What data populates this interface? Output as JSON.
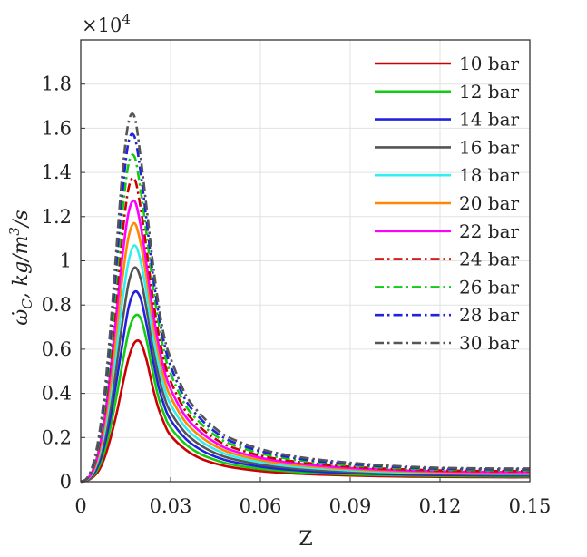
{
  "chart_data": {
    "type": "line",
    "xlabel": "Z",
    "ylabel": "ω̇C, kg/m³/s",
    "ylabel_parts": {
      "omega": "ω̇",
      "sub": "C",
      "rest": ", kg/m",
      "sup": "3",
      "tail": "/s"
    },
    "y_exponent_label": "×10",
    "y_exponent_power": "4",
    "y_scale": 10000,
    "xlim": [
      0,
      0.15
    ],
    "ylim": [
      0,
      2.0
    ],
    "x_ticks": [
      0,
      0.03,
      0.06,
      0.09,
      0.12,
      0.15
    ],
    "x_tick_labels": [
      "0",
      "0.03",
      "0.06",
      "0.09",
      "0.12",
      "0.15"
    ],
    "y_ticks": [
      0,
      0.2,
      0.4,
      0.6,
      0.8,
      1.0,
      1.2,
      1.4,
      1.6,
      1.8
    ],
    "y_tick_labels": [
      "0",
      "0.2",
      "0.4",
      "0.6",
      "0.8",
      "1",
      "1.2",
      "1.4",
      "1.6",
      "1.8"
    ],
    "grid": true,
    "legend_position": "top-right",
    "x": [
      0,
      0.002,
      0.004,
      0.006,
      0.008,
      0.01,
      0.012,
      0.014,
      0.016,
      0.018,
      0.02,
      0.022,
      0.024,
      0.026,
      0.028,
      0.03,
      0.035,
      0.04,
      0.045,
      0.05,
      0.06,
      0.07,
      0.08,
      0.09,
      0.1,
      0.11,
      0.12,
      0.13,
      0.14,
      0.15
    ],
    "series": [
      {
        "name": "10 bar",
        "color": "#cc0000",
        "dash": "solid",
        "peak": 0.64,
        "peak_x": 0.0195,
        "tail": 0.02,
        "values": [
          0,
          0.005,
          0.02,
          0.05,
          0.11,
          0.2,
          0.31,
          0.44,
          0.56,
          0.63,
          0.63,
          0.55,
          0.43,
          0.33,
          0.26,
          0.21,
          0.145,
          0.105,
          0.082,
          0.066,
          0.048,
          0.038,
          0.032,
          0.028,
          0.025,
          0.023,
          0.022,
          0.021,
          0.02,
          0.02
        ]
      },
      {
        "name": "12 bar",
        "color": "#11cc11",
        "dash": "solid",
        "peak": 0.76,
        "peak_x": 0.019,
        "tail": 0.024,
        "values": [
          0,
          0.006,
          0.025,
          0.065,
          0.14,
          0.25,
          0.39,
          0.54,
          0.68,
          0.75,
          0.74,
          0.64,
          0.5,
          0.38,
          0.3,
          0.245,
          0.17,
          0.125,
          0.098,
          0.079,
          0.058,
          0.046,
          0.038,
          0.033,
          0.03,
          0.028,
          0.026,
          0.025,
          0.024,
          0.024
        ]
      },
      {
        "name": "14 bar",
        "color": "#2222dd",
        "dash": "solid",
        "peak": 0.87,
        "peak_x": 0.0185,
        "tail": 0.028,
        "values": [
          0,
          0.007,
          0.03,
          0.08,
          0.17,
          0.3,
          0.46,
          0.63,
          0.79,
          0.86,
          0.83,
          0.71,
          0.56,
          0.43,
          0.34,
          0.28,
          0.195,
          0.145,
          0.113,
          0.092,
          0.068,
          0.054,
          0.045,
          0.039,
          0.035,
          0.032,
          0.03,
          0.029,
          0.028,
          0.028
        ]
      },
      {
        "name": "16 bar",
        "color": "#555555",
        "dash": "solid",
        "peak": 0.98,
        "peak_x": 0.018,
        "tail": 0.032,
        "values": [
          0,
          0.008,
          0.035,
          0.095,
          0.2,
          0.35,
          0.53,
          0.73,
          0.9,
          0.97,
          0.92,
          0.78,
          0.62,
          0.48,
          0.38,
          0.315,
          0.22,
          0.165,
          0.129,
          0.105,
          0.078,
          0.062,
          0.052,
          0.045,
          0.04,
          0.037,
          0.035,
          0.033,
          0.032,
          0.032
        ]
      },
      {
        "name": "18 bar",
        "color": "#33eeee",
        "dash": "solid",
        "peak": 1.08,
        "peak_x": 0.0175,
        "tail": 0.036,
        "values": [
          0,
          0.009,
          0.04,
          0.11,
          0.23,
          0.4,
          0.61,
          0.83,
          1.0,
          1.07,
          1.0,
          0.85,
          0.67,
          0.53,
          0.42,
          0.35,
          0.245,
          0.185,
          0.145,
          0.118,
          0.088,
          0.07,
          0.059,
          0.051,
          0.045,
          0.041,
          0.039,
          0.037,
          0.036,
          0.036
        ]
      },
      {
        "name": "20 bar",
        "color": "#ff8800",
        "dash": "solid",
        "peak": 1.18,
        "peak_x": 0.017,
        "tail": 0.04,
        "values": [
          0,
          0.01,
          0.045,
          0.125,
          0.26,
          0.45,
          0.69,
          0.93,
          1.11,
          1.17,
          1.08,
          0.92,
          0.73,
          0.58,
          0.46,
          0.385,
          0.27,
          0.205,
          0.161,
          0.131,
          0.098,
          0.078,
          0.066,
          0.057,
          0.05,
          0.046,
          0.043,
          0.041,
          0.04,
          0.04
        ]
      },
      {
        "name": "22 bar",
        "color": "#ff00ff",
        "dash": "solid",
        "peak": 1.28,
        "peak_x": 0.0165,
        "tail": 0.044,
        "values": [
          0,
          0.011,
          0.05,
          0.14,
          0.29,
          0.51,
          0.77,
          1.03,
          1.22,
          1.27,
          1.16,
          0.98,
          0.78,
          0.62,
          0.5,
          0.42,
          0.295,
          0.225,
          0.177,
          0.144,
          0.108,
          0.086,
          0.072,
          0.062,
          0.055,
          0.05,
          0.047,
          0.045,
          0.044,
          0.044
        ]
      },
      {
        "name": "24 bar",
        "color": "#cc0000",
        "dash": "dashdot",
        "peak": 1.38,
        "peak_x": 0.016,
        "tail": 0.048,
        "values": [
          0,
          0.012,
          0.056,
          0.155,
          0.32,
          0.56,
          0.85,
          1.13,
          1.33,
          1.37,
          1.24,
          1.05,
          0.84,
          0.67,
          0.54,
          0.455,
          0.32,
          0.245,
          0.193,
          0.158,
          0.118,
          0.094,
          0.079,
          0.068,
          0.06,
          0.055,
          0.051,
          0.049,
          0.048,
          0.048
        ]
      },
      {
        "name": "26 bar",
        "color": "#11cc11",
        "dash": "dashdot",
        "peak": 1.48,
        "peak_x": 0.016,
        "tail": 0.052,
        "values": [
          0,
          0.013,
          0.062,
          0.17,
          0.35,
          0.61,
          0.93,
          1.23,
          1.44,
          1.47,
          1.32,
          1.12,
          0.9,
          0.72,
          0.58,
          0.49,
          0.345,
          0.265,
          0.209,
          0.171,
          0.128,
          0.102,
          0.085,
          0.074,
          0.065,
          0.059,
          0.055,
          0.053,
          0.052,
          0.052
        ]
      },
      {
        "name": "28 bar",
        "color": "#2222dd",
        "dash": "dashdot",
        "peak": 1.57,
        "peak_x": 0.0155,
        "tail": 0.056,
        "values": [
          0,
          0.014,
          0.068,
          0.185,
          0.38,
          0.66,
          1.0,
          1.32,
          1.54,
          1.56,
          1.4,
          1.18,
          0.95,
          0.76,
          0.62,
          0.525,
          0.37,
          0.285,
          0.225,
          0.184,
          0.138,
          0.11,
          0.092,
          0.08,
          0.07,
          0.064,
          0.059,
          0.057,
          0.056,
          0.056
        ]
      },
      {
        "name": "30 bar",
        "color": "#555555",
        "dash": "dashdot",
        "peak": 1.67,
        "peak_x": 0.015,
        "tail": 0.06,
        "values": [
          0,
          0.015,
          0.074,
          0.2,
          0.41,
          0.71,
          1.07,
          1.41,
          1.63,
          1.65,
          1.47,
          1.24,
          1.0,
          0.8,
          0.65,
          0.56,
          0.395,
          0.305,
          0.241,
          0.197,
          0.148,
          0.118,
          0.099,
          0.086,
          0.075,
          0.068,
          0.063,
          0.061,
          0.06,
          0.06
        ]
      }
    ]
  }
}
